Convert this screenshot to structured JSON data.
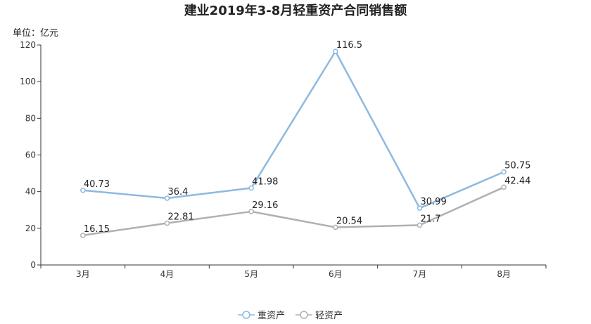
{
  "chart_data": {
    "type": "line",
    "title": "建业2019年3-8月轻重资产合同销售额",
    "unit_label": "单位：亿元",
    "categories": [
      "3月",
      "4月",
      "5月",
      "6月",
      "7月",
      "8月"
    ],
    "series": [
      {
        "name": "重资产",
        "color": "#8db9e0",
        "values": [
          40.73,
          36.4,
          41.98,
          116.5,
          30.99,
          50.75
        ],
        "labels": [
          "40.73",
          "36.4",
          "41.98",
          "116.5",
          "30.99",
          "50.75"
        ]
      },
      {
        "name": "轻资产",
        "color": "#b0b0b0",
        "values": [
          16.15,
          22.81,
          29.16,
          20.54,
          21.7,
          42.44
        ],
        "labels": [
          "16.15",
          "22.81",
          "29.16",
          "20.54",
          "21.7",
          "42.44"
        ]
      }
    ],
    "ylim": [
      0,
      120
    ],
    "yticks": [
      0,
      20,
      40,
      60,
      80,
      100,
      120
    ],
    "ytick_labels": [
      "0",
      "20",
      "40",
      "60",
      "80",
      "100",
      "120"
    ],
    "grid": false,
    "legend_position": "bottom-center"
  }
}
